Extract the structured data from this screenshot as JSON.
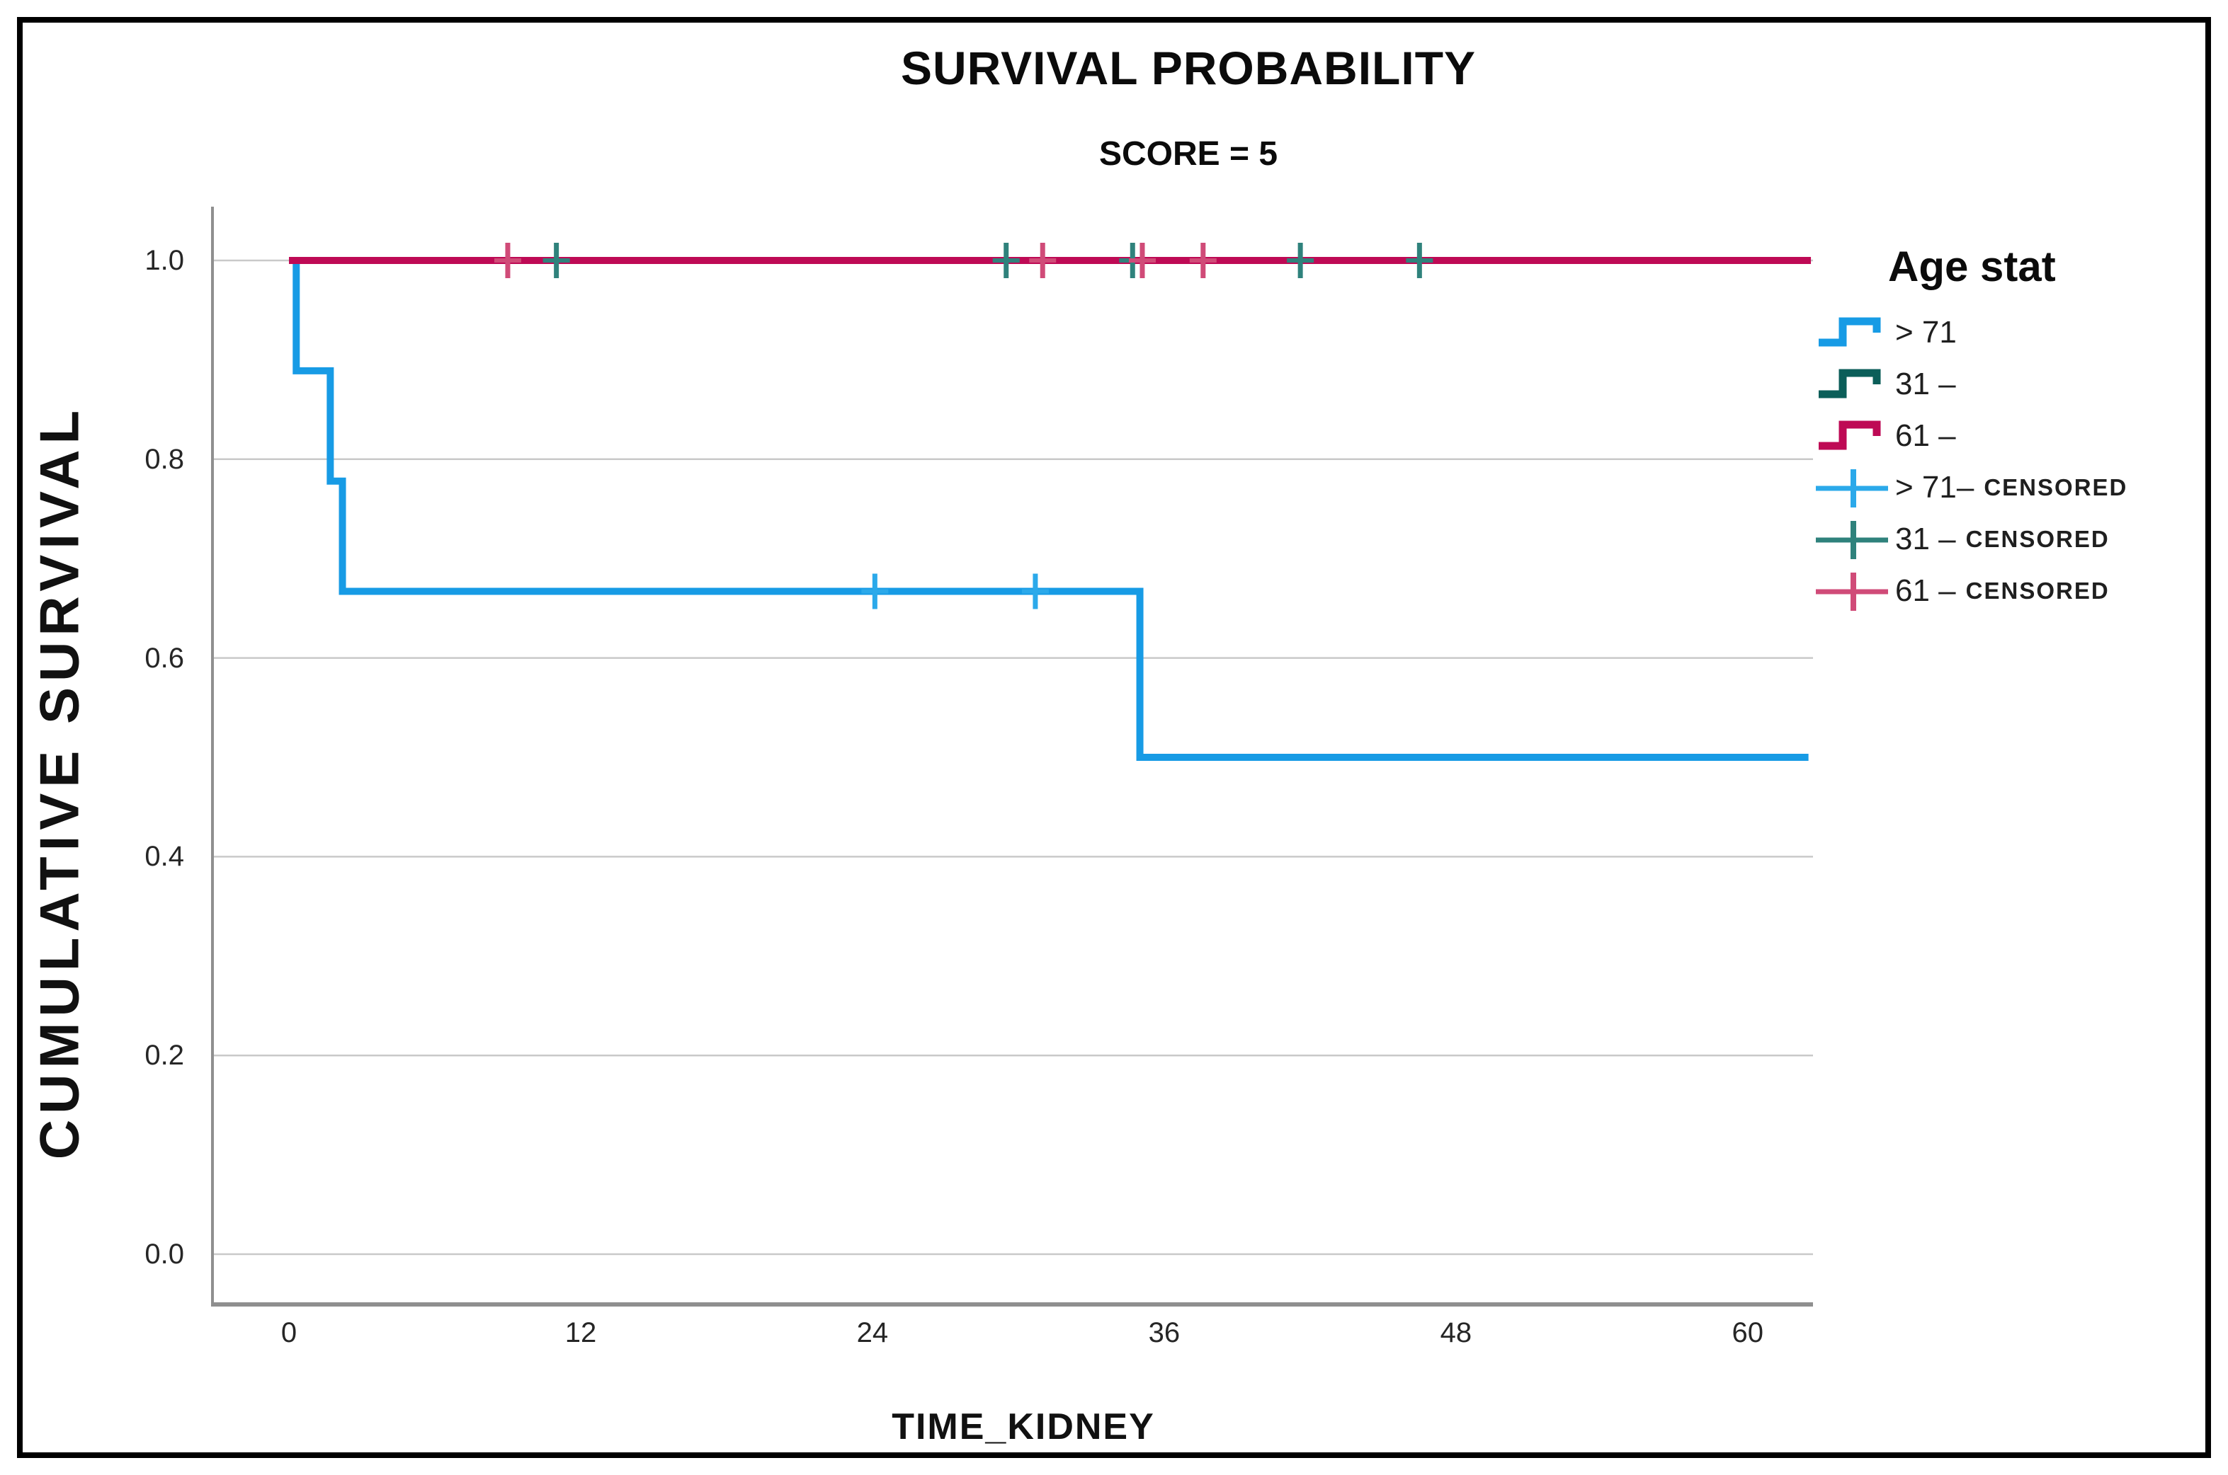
{
  "figure": {
    "title": "SURVIVAL PROBABILITY",
    "subtitle": "SCORE = 5"
  },
  "axes": {
    "x_label": "TIME_KIDNEY",
    "y_label": "CUMULATIVE SURVIVAL",
    "x_tick_labels": [
      "0",
      "12",
      "24",
      "36",
      "48",
      "60"
    ],
    "y_tick_labels": [
      "1.0",
      "0.8",
      "0.6",
      "0.4",
      "0.2",
      "0.0"
    ]
  },
  "legend": {
    "title": "Age stat",
    "items": [
      {
        "label": "> 71",
        "suffix": "",
        "marker": "step",
        "series": 0
      },
      {
        "label": "31 –",
        "suffix": "",
        "marker": "step",
        "series": 1
      },
      {
        "label": "61 –",
        "suffix": "",
        "marker": "step",
        "series": 2
      },
      {
        "label": "> 71–",
        "suffix": "CENSORED",
        "marker": "plus",
        "series": 0
      },
      {
        "label": "31 –",
        "suffix": "CENSORED",
        "marker": "plus",
        "series": 1
      },
      {
        "label": "61 –",
        "suffix": "CENSORED",
        "marker": "plus",
        "series": 2
      }
    ]
  },
  "colors": {
    "grid": "#c9c9c9",
    "axis": "#8f8f8f",
    "frame": "#000000",
    "blue": "#179BE5",
    "blue_censored": "#2BA9EA",
    "teal": "#0B5E59",
    "teal_censored": "#2F827C",
    "crimson": "#BE0A55",
    "crimson_censored": "#D04B78"
  },
  "chart_data": {
    "type": "line",
    "subtype": "kaplan-meier-step",
    "title": "SURVIVAL PROBABILITY",
    "subtitle": "SCORE = 5",
    "xlabel": "TIME_KIDNEY",
    "ylabel": "CUMULATIVE SURVIVAL",
    "xlim": [
      -3.2,
      62.8
    ],
    "ylim": [
      -0.05,
      1.05
    ],
    "x_ticks": [
      0,
      12,
      24,
      36,
      48,
      60
    ],
    "y_ticks": [
      1.0,
      0.8,
      0.6,
      0.4,
      0.2,
      0.0
    ],
    "grid": "horizontal",
    "legend_position": "right",
    "series": [
      {
        "name": "> 71",
        "color": "#179BE5",
        "censored_color": "#2BA9EA",
        "points": [
          [
            0,
            1.0
          ],
          [
            0.3,
            1.0
          ],
          [
            0.3,
            0.889
          ],
          [
            1.7,
            0.889
          ],
          [
            1.7,
            0.778
          ],
          [
            2.2,
            0.778
          ],
          [
            2.2,
            0.667
          ],
          [
            35,
            0.667
          ],
          [
            35,
            0.5
          ],
          [
            62.5,
            0.5
          ]
        ],
        "censored_points": [
          [
            24.1,
            0.667
          ],
          [
            30.7,
            0.667
          ]
        ]
      },
      {
        "name": "31 –",
        "color": "#0B5E59",
        "censored_color": "#2F827C",
        "points": [
          [
            0,
            1.0
          ],
          [
            62.5,
            1.0
          ]
        ],
        "censored_points": [
          [
            11,
            1.0
          ],
          [
            29.5,
            1.0
          ],
          [
            34.7,
            1.0
          ],
          [
            41.6,
            1.0
          ],
          [
            46.5,
            1.0
          ]
        ]
      },
      {
        "name": "61 –",
        "color": "#BE0A55",
        "censored_color": "#D04B78",
        "points": [
          [
            0,
            1.0
          ],
          [
            62.6,
            1.0
          ]
        ],
        "censored_points": [
          [
            9,
            1.0
          ],
          [
            31,
            1.0
          ],
          [
            35.1,
            1.0
          ],
          [
            37.6,
            1.0
          ]
        ]
      }
    ]
  }
}
